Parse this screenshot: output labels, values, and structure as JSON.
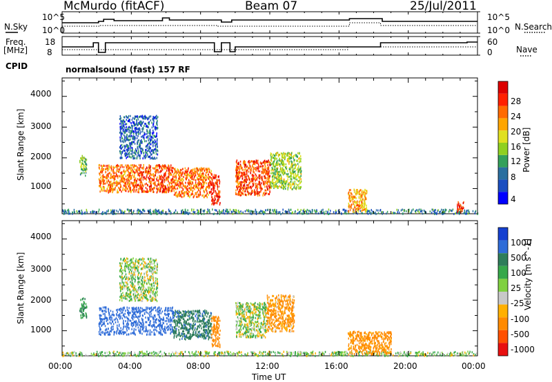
{
  "header": {
    "station": "McMurdo (fitACF)",
    "beam": "Beam 07",
    "date": "25/Jul/2011"
  },
  "top_panels": {
    "nsky_label": "N.Sky",
    "nsky_ticks": [
      "10^5",
      "10^0"
    ],
    "nsearch_label": "N.Search",
    "nsearch_ticks": [
      "10^5",
      "10^0"
    ],
    "freq_label_line1": "Freq.",
    "freq_label_line2": "[MHz]",
    "freq_ticks": [
      "18",
      "8"
    ],
    "nave_label": "Nave",
    "nave_ticks": [
      "60",
      "0"
    ],
    "cpid_label": "CPID",
    "cpid_value": "normalsound (fast) 157 RF"
  },
  "x_axis": {
    "label": "Time UT",
    "ticks": [
      "00:00",
      "04:00",
      "08:00",
      "12:00",
      "16:00",
      "20:00",
      "00:00"
    ]
  },
  "chart_data": [
    {
      "type": "heatmap",
      "name": "power",
      "xlabel": "Time UT",
      "ylabel": "Slant Range [km]",
      "x_ticks": [
        "00:00",
        "04:00",
        "08:00",
        "12:00",
        "16:00",
        "20:00",
        "00:00"
      ],
      "xlim_hours": [
        0,
        24
      ],
      "y_ticks": [
        1000,
        2000,
        3000,
        4000
      ],
      "ylim": [
        180,
        4600
      ],
      "colorbar": {
        "label": "Power [dB]",
        "ticks": [
          4,
          8,
          12,
          16,
          20,
          24,
          28
        ],
        "range": [
          0,
          30
        ],
        "colors": [
          "#0000ff",
          "#1a4ec0",
          "#2a6f9f",
          "#33a05a",
          "#8fd020",
          "#e0e020",
          "#ffa500",
          "#ff6a00",
          "#ff2000",
          "#dd0000"
        ]
      },
      "echo_regions": [
        {
          "t0": 1.0,
          "t1": 1.4,
          "r0": 1450,
          "r1": 2100,
          "level": 12
        },
        {
          "t0": 2.1,
          "t1": 4.3,
          "r0": 900,
          "r1": 1800,
          "level": 22
        },
        {
          "t0": 4.3,
          "t1": 6.4,
          "r0": 900,
          "r1": 1800,
          "level": 24
        },
        {
          "t0": 6.4,
          "t1": 8.6,
          "r0": 750,
          "r1": 1700,
          "level": 22
        },
        {
          "t0": 8.6,
          "t1": 9.1,
          "r0": 500,
          "r1": 1500,
          "level": 26
        },
        {
          "t0": 10.0,
          "t1": 12.0,
          "r0": 800,
          "r1": 1950,
          "level": 24
        },
        {
          "t0": 12.0,
          "t1": 13.8,
          "r0": 1000,
          "r1": 2200,
          "level": 14
        },
        {
          "t0": 3.3,
          "t1": 5.5,
          "r0": 2000,
          "r1": 3400,
          "level": 6
        },
        {
          "t0": 0.0,
          "t1": 24.0,
          "r0": 200,
          "r1": 350,
          "level": 8
        },
        {
          "t0": 16.5,
          "t1": 17.6,
          "r0": 250,
          "r1": 1000,
          "level": 20
        },
        {
          "t0": 22.8,
          "t1": 23.2,
          "r0": 250,
          "r1": 600,
          "level": 26
        }
      ]
    },
    {
      "type": "heatmap",
      "name": "velocity",
      "xlabel": "Time UT",
      "ylabel": "Slant Range [km]",
      "x_ticks": [
        "00:00",
        "04:00",
        "08:00",
        "12:00",
        "16:00",
        "20:00",
        "00:00"
      ],
      "xlim_hours": [
        0,
        24
      ],
      "y_ticks": [
        1000,
        2000,
        3000,
        4000
      ],
      "ylim": [
        180,
        4600
      ],
      "colorbar": {
        "label": "Velocity [m s^-1]",
        "ticks": [
          1000,
          500,
          100,
          25,
          -25,
          -100,
          -500,
          -1000
        ],
        "colors": [
          "#1540d0",
          "#2f6cd8",
          "#2e7d5a",
          "#36a84a",
          "#80d040",
          "#c8c8c8",
          "#ffb000",
          "#ff8a00",
          "#ff5000",
          "#e81010"
        ]
      },
      "echo_regions": [
        {
          "t0": 1.0,
          "t1": 1.4,
          "r0": 1450,
          "r1": 2100,
          "velocity": 300
        },
        {
          "t0": 2.1,
          "t1": 6.4,
          "r0": 900,
          "r1": 1800,
          "velocity": 800
        },
        {
          "t0": 6.4,
          "t1": 8.6,
          "r0": 750,
          "r1": 1700,
          "velocity": 400
        },
        {
          "t0": 8.6,
          "t1": 9.1,
          "r0": 500,
          "r1": 1500,
          "velocity": -300
        },
        {
          "t0": 10.0,
          "t1": 11.8,
          "r0": 800,
          "r1": 1950,
          "velocity": 50
        },
        {
          "t0": 11.8,
          "t1": 13.4,
          "r0": 1000,
          "r1": 2200,
          "velocity": -150
        },
        {
          "t0": 3.3,
          "t1": 5.5,
          "r0": 2000,
          "r1": 3400,
          "velocity": 60
        },
        {
          "t0": 0.0,
          "t1": 24.0,
          "r0": 200,
          "r1": 350,
          "velocity": 80
        },
        {
          "t0": 16.5,
          "t1": 19.0,
          "r0": 250,
          "r1": 1000,
          "velocity": -200
        }
      ]
    }
  ]
}
